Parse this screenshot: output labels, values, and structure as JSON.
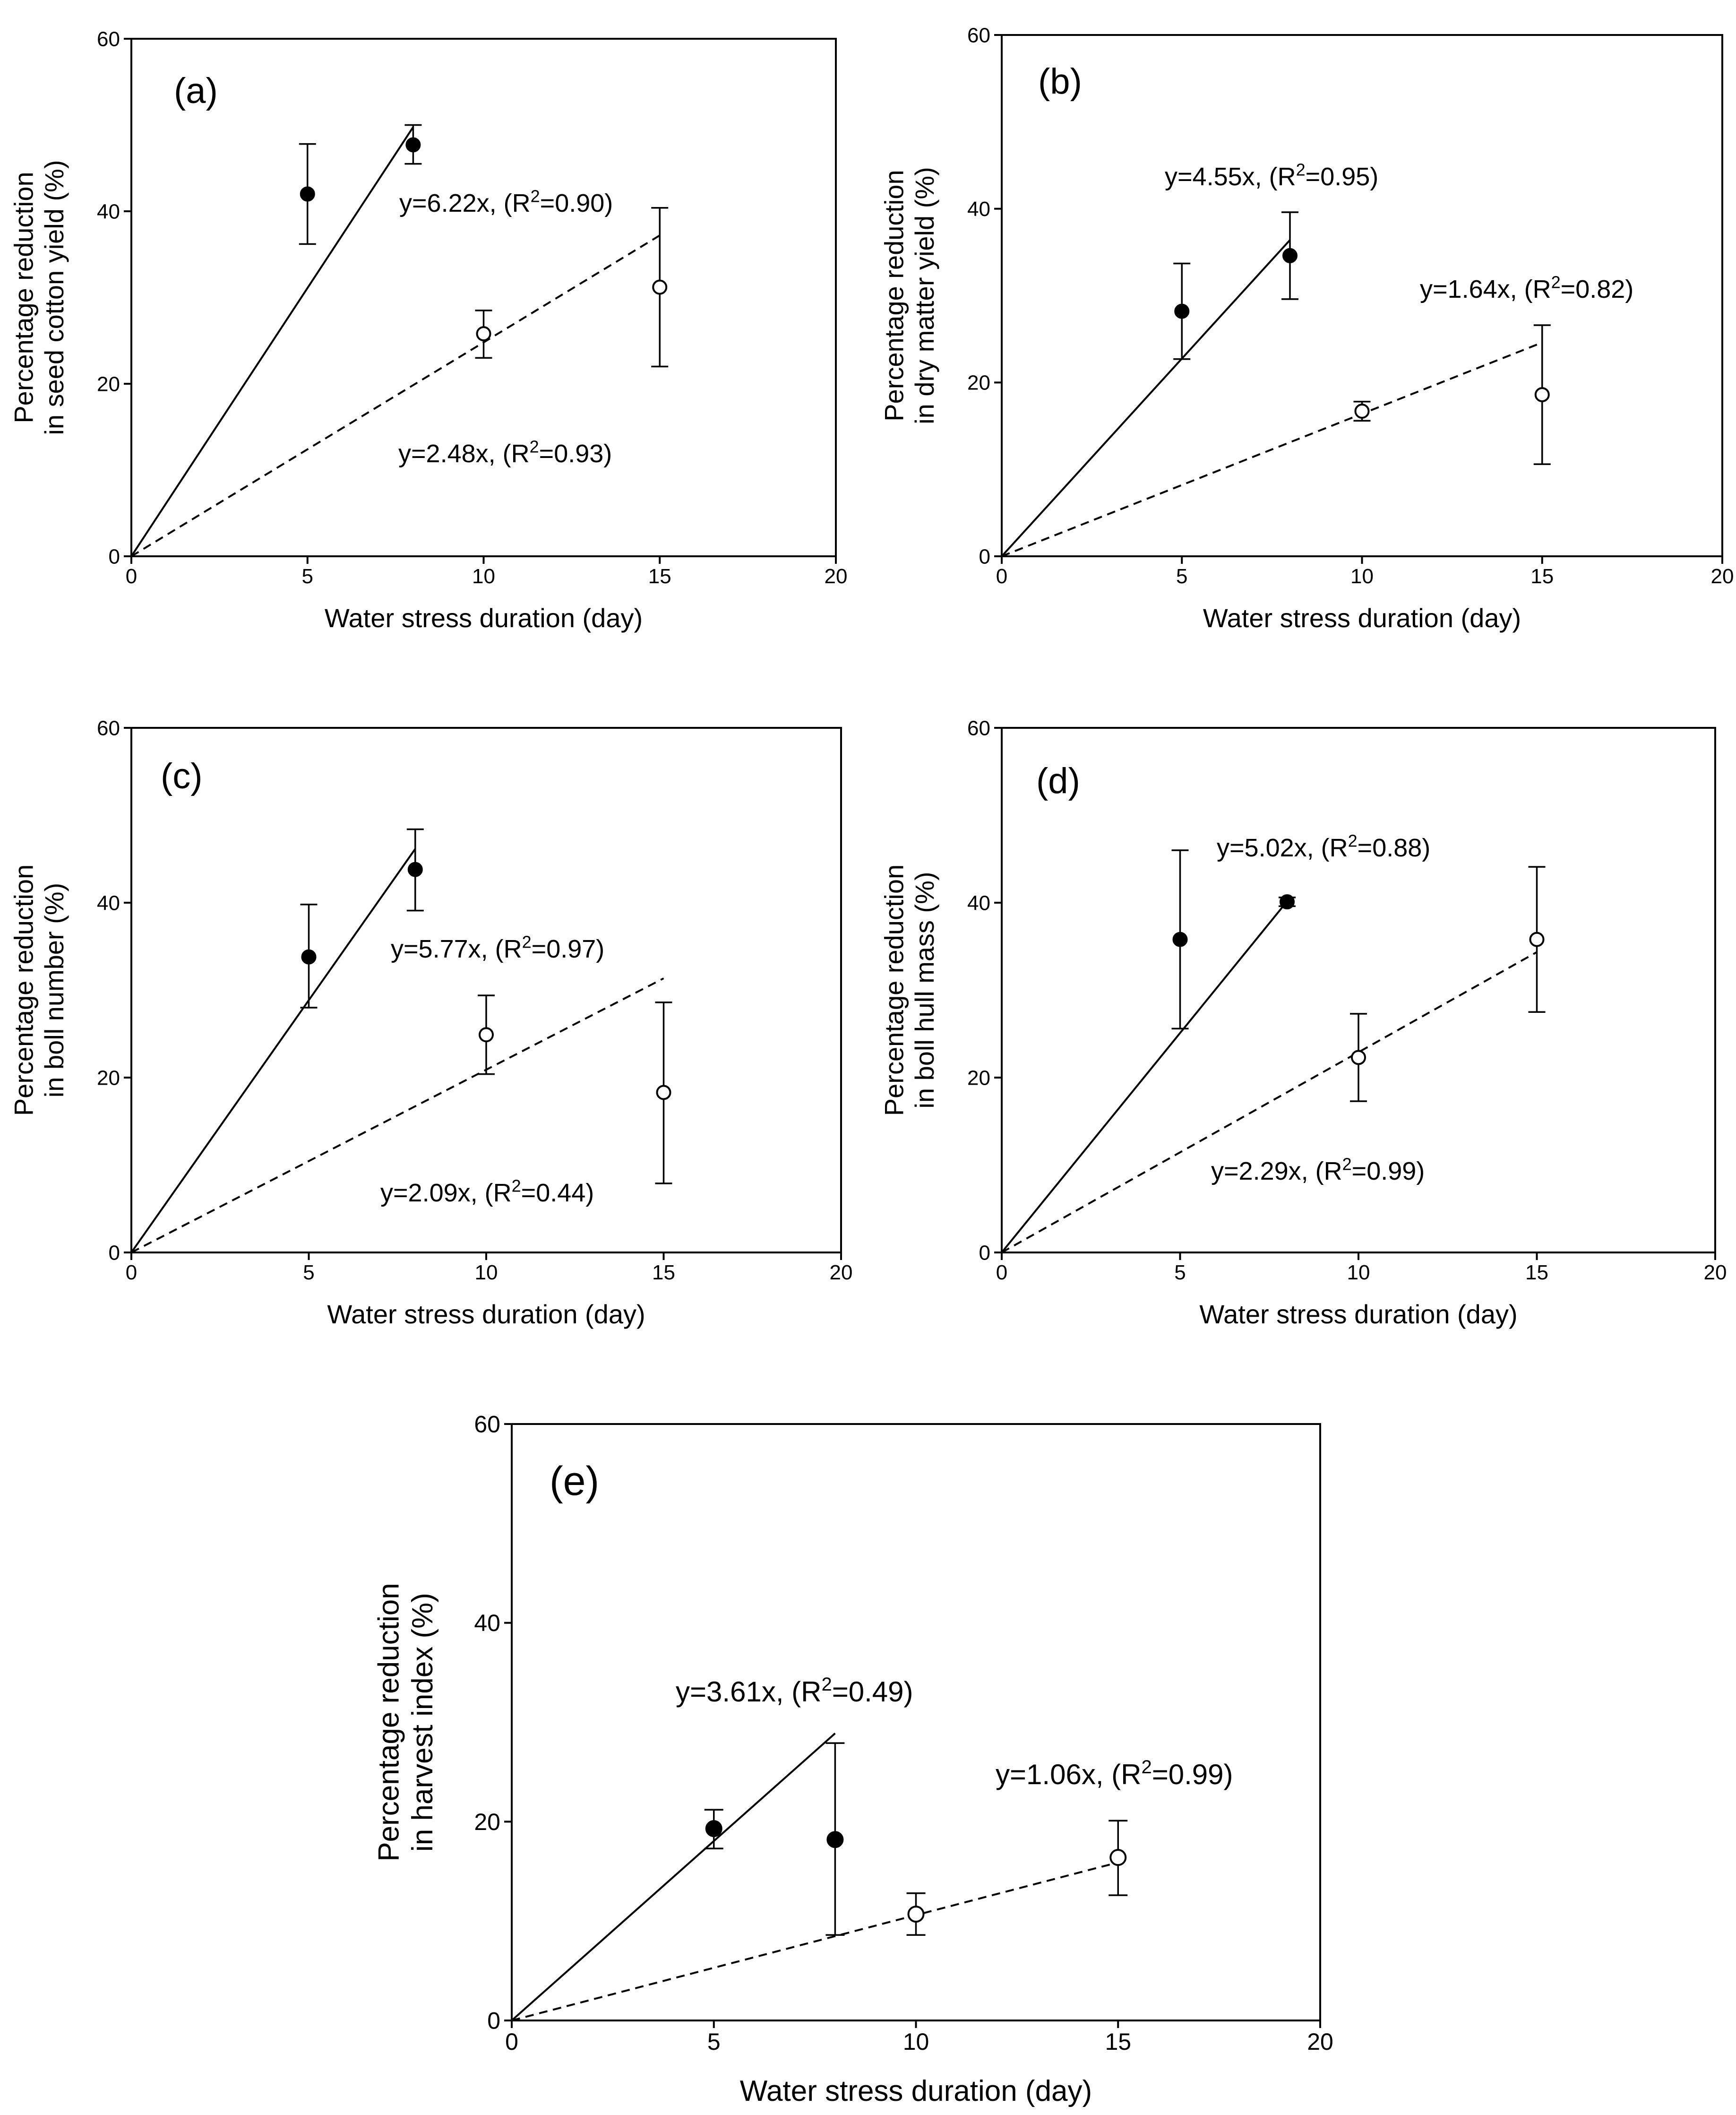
{
  "chart_data": [
    {
      "type": "scatter",
      "panel_label": "(a)",
      "xlabel": "Water stress duration (day)",
      "ylabel": [
        "Percentage reduction",
        "in seed cotton yield (%)"
      ],
      "xlim": [
        0,
        20
      ],
      "ylim": [
        0,
        60
      ],
      "xticks": [
        0,
        5,
        10,
        15,
        20
      ],
      "yticks": [
        0,
        20,
        40,
        60
      ],
      "series": [
        {
          "name": "filled",
          "marker": "filled-circle",
          "x": [
            5,
            8
          ],
          "y": [
            42,
            47.7
          ],
          "err_low": [
            36.2,
            45.5
          ],
          "err_high": [
            47.8,
            50
          ],
          "fit": {
            "slope": 6.22,
            "x_end": 8,
            "style": "solid",
            "eq_prefix": "y=6.22x, (R",
            "eq_sup": "2",
            "eq_suffix": "=0.90)"
          }
        },
        {
          "name": "open",
          "marker": "open-circle",
          "x": [
            10,
            15
          ],
          "y": [
            25.8,
            31.2
          ],
          "err_low": [
            23,
            22
          ],
          "err_high": [
            28.5,
            40.4
          ],
          "fit": {
            "slope": 2.48,
            "x_end": 15,
            "style": "dashed",
            "eq_prefix": "y=2.48x, (R",
            "eq_sup": "2",
            "eq_suffix": "=0.93)"
          }
        }
      ]
    },
    {
      "type": "scatter",
      "panel_label": "(b)",
      "xlabel": "Water stress duration (day)",
      "ylabel": [
        "Percentage reduction",
        "in dry matter yield (%)"
      ],
      "xlim": [
        0,
        20
      ],
      "ylim": [
        0,
        60
      ],
      "xticks": [
        0,
        5,
        10,
        15,
        20
      ],
      "yticks": [
        0,
        20,
        40,
        60
      ],
      "series": [
        {
          "name": "filled",
          "marker": "filled-circle",
          "x": [
            5,
            8
          ],
          "y": [
            28.2,
            34.6
          ],
          "err_low": [
            22.7,
            29.6
          ],
          "err_high": [
            33.7,
            39.6
          ],
          "fit": {
            "slope": 4.55,
            "x_end": 8,
            "style": "solid",
            "eq_prefix": "y=4.55x, (R",
            "eq_sup": "2",
            "eq_suffix": "=0.95)"
          }
        },
        {
          "name": "open",
          "marker": "open-circle",
          "x": [
            10,
            15
          ],
          "y": [
            16.7,
            18.6
          ],
          "err_low": [
            15.6,
            10.6
          ],
          "err_high": [
            17.8,
            26.6
          ],
          "fit": {
            "slope": 1.64,
            "x_end": 15,
            "style": "dashed",
            "eq_prefix": "y=1.64x, (R",
            "eq_sup": "2",
            "eq_suffix": "=0.82)"
          }
        }
      ]
    },
    {
      "type": "scatter",
      "panel_label": "(c)",
      "xlabel": "Water stress duration (day)",
      "ylabel": [
        "Percentage reduction",
        "in  boll number (%)"
      ],
      "xlim": [
        0,
        20
      ],
      "ylim": [
        0,
        60
      ],
      "xticks": [
        0,
        5,
        10,
        15,
        20
      ],
      "yticks": [
        0,
        20,
        40,
        60
      ],
      "series": [
        {
          "name": "filled",
          "marker": "filled-circle",
          "x": [
            5,
            8
          ],
          "y": [
            33.8,
            43.8
          ],
          "err_low": [
            28,
            39.1
          ],
          "err_high": [
            39.8,
            48.4
          ],
          "fit": {
            "slope": 5.77,
            "x_end": 8,
            "style": "solid",
            "eq_prefix": "y=5.77x, (R",
            "eq_sup": "2",
            "eq_suffix": "=0.97)"
          }
        },
        {
          "name": "open",
          "marker": "open-circle",
          "x": [
            10,
            15
          ],
          "y": [
            24.9,
            18.3
          ],
          "err_low": [
            20.4,
            7.9
          ],
          "err_high": [
            29.4,
            28.6
          ],
          "fit": {
            "slope": 2.09,
            "x_end": 15,
            "style": "dashed",
            "eq_prefix": "y=2.09x, (R",
            "eq_sup": "2",
            "eq_suffix": "=0.44)"
          }
        }
      ]
    },
    {
      "type": "scatter",
      "panel_label": "(d)",
      "xlabel": "Water stress duration (day)",
      "ylabel": [
        "Percentage reduction",
        "in boll hull mass (%)"
      ],
      "xlim": [
        0,
        20
      ],
      "ylim": [
        0,
        60
      ],
      "xticks": [
        0,
        5,
        10,
        15,
        20
      ],
      "yticks": [
        0,
        20,
        40,
        60
      ],
      "series": [
        {
          "name": "filled",
          "marker": "filled-circle",
          "x": [
            5,
            8
          ],
          "y": [
            35.8,
            40.1
          ],
          "err_low": [
            25.6,
            39.6
          ],
          "err_high": [
            46,
            40.6
          ],
          "fit": {
            "slope": 5.02,
            "x_end": 8,
            "style": "solid",
            "eq_prefix": "y=5.02x, (R",
            "eq_sup": "2",
            "eq_suffix": "=0.88)"
          }
        },
        {
          "name": "open",
          "marker": "open-circle",
          "x": [
            10,
            15
          ],
          "y": [
            22.3,
            35.8
          ],
          "err_low": [
            17.3,
            27.5
          ],
          "err_high": [
            27.3,
            44.1
          ],
          "fit": {
            "slope": 2.29,
            "x_end": 15,
            "style": "dashed",
            "eq_prefix": "y=2.29x, (R",
            "eq_sup": "2",
            "eq_suffix": "=0.99)"
          }
        }
      ]
    },
    {
      "type": "scatter",
      "panel_label": "(e)",
      "xlabel": "Water stress duration (day)",
      "ylabel": [
        "Percentage reduction",
        "in harvest index (%)"
      ],
      "xlim": [
        0,
        20
      ],
      "ylim": [
        0,
        60
      ],
      "xticks": [
        0,
        5,
        10,
        15,
        20
      ],
      "yticks": [
        0,
        20,
        40,
        60
      ],
      "series": [
        {
          "name": "filled",
          "marker": "filled-circle",
          "x": [
            5,
            8
          ],
          "y": [
            19.3,
            18.2
          ],
          "err_low": [
            17.3,
            8.6
          ],
          "err_high": [
            21.2,
            27.9
          ],
          "fit": {
            "slope": 3.61,
            "x_end": 8,
            "style": "solid",
            "eq_prefix": "y=3.61x, (R",
            "eq_sup": "2",
            "eq_suffix": "=0.49)"
          }
        },
        {
          "name": "open",
          "marker": "open-circle",
          "x": [
            10,
            15
          ],
          "y": [
            10.7,
            16.4
          ],
          "err_low": [
            8.6,
            12.6
          ],
          "err_high": [
            12.8,
            20.1
          ],
          "fit": {
            "slope": 1.06,
            "x_end": 15,
            "style": "dashed",
            "eq_prefix": "y=1.06x, (R",
            "eq_sup": "2",
            "eq_suffix": "=0.99)"
          }
        }
      ]
    }
  ]
}
